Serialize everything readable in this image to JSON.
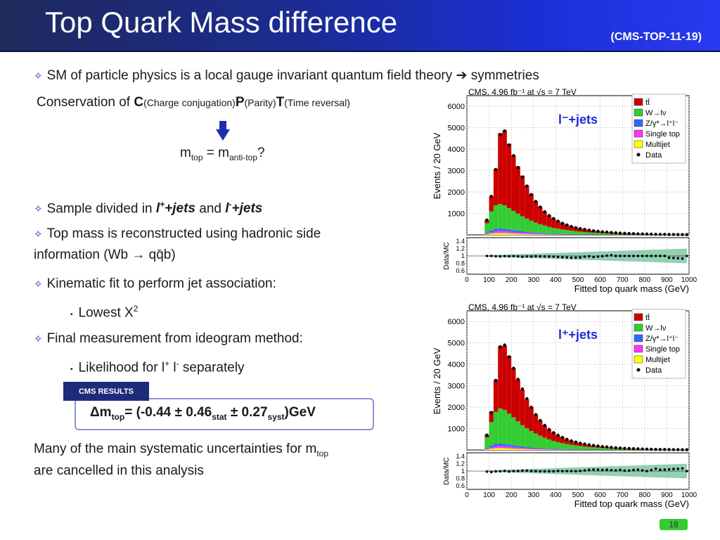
{
  "header": {
    "title": "Top Quark Mass difference",
    "ref": "(CMS-TOP-11-19)"
  },
  "body": {
    "line1": "SM of particle physics is a local gauge invariant quantum field theory",
    "line1_arrow": "➔",
    "line1_tail": "symmetries",
    "conservation_prefix": "Conservation of ",
    "c_letter": "C",
    "c_text": "(Charge conjugation)",
    "p_letter": "P",
    "p_text": "(Parity)",
    "t_letter": "T",
    "t_text": "(Time reversal)",
    "mtop_m": "m",
    "mtop_sub": "top",
    "mtop_eq": " = m",
    "mtop_sub2": "anti-top",
    "mtop_q": "?",
    "bullet_sample_a": "Sample divided in ",
    "bullet_sample_b": "l",
    "bullet_sample_bsup": "+",
    "bullet_sample_c": "+jets",
    "bullet_sample_d": " and ",
    "bullet_sample_e": "l",
    "bullet_sample_esup": "-",
    "bullet_sample_f": "+jets",
    "bullet_reco_1": "Top mass is reconstructed using hadronic side",
    "bullet_reco_2": "information (Wb → qq̄b)",
    "bullet_kin": "Kinematic fit to perform jet association:",
    "sub_lowest": "Lowest X",
    "sub_lowest_sup": "2",
    "bullet_final": "Final measurement from ideogram method:",
    "sub_like": "Likelihood for l",
    "sub_like_sup1": "+",
    "sub_like_mid": " l",
    "sub_like_sup2": "-",
    "sub_like_tail": " separately",
    "tag": "CMS RESULTS",
    "res_a": "Δm",
    "res_sub1": "top",
    "res_b": "= (-0.44 ± 0.46",
    "res_sub2": "stat",
    "res_c": " ± 0.27",
    "res_sub3": "syst",
    "res_d": ")GeV",
    "sys_1": "Many of the main systematic uncertainties  for m",
    "sys_sub": "top",
    "sys_2": "are cancelled in this analysis",
    "page_number": "18",
    "bullet_glyph": "✧",
    "square_glyph": "▪"
  },
  "chart_data": [
    {
      "type": "bar",
      "title": "CMS, 4.96 fb⁻¹ at √s = 7 TeV",
      "channel": "l⁻+jets",
      "xlabel": "Fitted top quark mass (GeV)",
      "ylabel": "Events / 20 GeV",
      "ratio_label": "Data/MC",
      "xlim": [
        0,
        1000
      ],
      "ylim": [
        0,
        6500
      ],
      "xticks": [
        0,
        100,
        200,
        300,
        400,
        500,
        600,
        700,
        800,
        900,
        1000
      ],
      "yticks": [
        1000,
        2000,
        3000,
        4000,
        5000,
        6000
      ],
      "ratio_ticks": [
        0.6,
        0.8,
        1,
        1.2,
        1.4
      ],
      "legend": [
        "tt̄",
        "W→lν",
        "Z/γ*→l⁺l⁻",
        "Single top",
        "Multijet",
        "Data"
      ],
      "colors": {
        "ttbar": "#cc0000",
        "wjets": "#33cc33",
        "zjets": "#3366ff",
        "singletop": "#ff33ff",
        "multijet": "#ffff00"
      },
      "x": [
        90,
        110,
        130,
        150,
        170,
        190,
        210,
        230,
        250,
        270,
        290,
        310,
        330,
        350,
        370,
        390,
        410,
        430,
        450,
        470,
        490,
        510,
        530,
        550,
        570,
        590,
        610,
        630,
        650,
        670,
        690,
        710,
        730,
        750,
        770,
        790,
        810,
        830,
        850,
        870,
        890,
        910,
        930,
        950,
        970,
        990
      ],
      "series": [
        {
          "name": "W→lν",
          "values": [
            450,
            900,
            1100,
            1150,
            1100,
            1000,
            900,
            800,
            700,
            620,
            540,
            470,
            410,
            360,
            310,
            270,
            240,
            210,
            185,
            160,
            140,
            125,
            110,
            95,
            85,
            75,
            66,
            58,
            50,
            44,
            39,
            34,
            30,
            27,
            24,
            21,
            18,
            16,
            14,
            12,
            11,
            10,
            9,
            8,
            7,
            6
          ]
        },
        {
          "name": "tt̄",
          "values": [
            150,
            700,
            1700,
            3300,
            3500,
            3000,
            2600,
            2200,
            1900,
            1550,
            1250,
            1000,
            820,
            660,
            540,
            450,
            370,
            310,
            260,
            220,
            185,
            155,
            130,
            110,
            95,
            80,
            68,
            58,
            49,
            42,
            36,
            31,
            27,
            23,
            20,
            17,
            15,
            13,
            11,
            9,
            8,
            7,
            6,
            5,
            4,
            3
          ]
        },
        {
          "name": "Z/γ*→l⁺l⁻",
          "values": [
            40,
            80,
            110,
            110,
            100,
            95,
            85,
            75,
            65,
            55,
            48,
            42,
            36,
            31,
            27,
            23,
            20,
            17,
            15,
            13,
            11,
            10,
            9,
            8,
            7,
            6,
            5,
            5,
            4,
            4,
            3,
            3,
            3,
            2,
            2,
            2,
            2,
            1,
            1,
            1,
            1,
            1,
            1,
            1,
            1,
            1
          ]
        },
        {
          "name": "Single top",
          "values": [
            20,
            60,
            90,
            100,
            95,
            85,
            75,
            65,
            55,
            47,
            40,
            34,
            29,
            25,
            21,
            18,
            15,
            13,
            11,
            9,
            8,
            7,
            6,
            5,
            5,
            4,
            4,
            3,
            3,
            3,
            2,
            2,
            2,
            2,
            1,
            1,
            1,
            1,
            1,
            1,
            1,
            1,
            1,
            1,
            1,
            1
          ]
        },
        {
          "name": "Multijet",
          "values": [
            30,
            60,
            80,
            85,
            80,
            70,
            60,
            52,
            45,
            38,
            32,
            27,
            23,
            20,
            17,
            14,
            12,
            10,
            9,
            8,
            7,
            6,
            5,
            4,
            4,
            3,
            3,
            3,
            2,
            2,
            2,
            2,
            1,
            1,
            1,
            1,
            1,
            1,
            1,
            1,
            1,
            1,
            1,
            1,
            1,
            1
          ]
        },
        {
          "name": "Data",
          "values": [
            690,
            1800,
            3050,
            4680,
            4850,
            4200,
            3700,
            3150,
            2700,
            2280,
            1880,
            1560,
            1300,
            1080,
            900,
            760,
            640,
            540,
            460,
            390,
            335,
            290,
            255,
            220,
            190,
            165,
            145,
            128,
            110,
            95,
            82,
            72,
            63,
            55,
            48,
            42,
            37,
            32,
            28,
            24,
            22,
            19,
            17,
            15,
            13,
            12
          ]
        }
      ]
    },
    {
      "type": "bar",
      "title": "CMS, 4.96 fb⁻¹ at √s = 7 TeV",
      "channel": "l⁺+jets",
      "xlabel": "Fitted top quark mass (GeV)",
      "ylabel": "Events / 20 GeV",
      "ratio_label": "Data/MC",
      "xlim": [
        0,
        1000
      ],
      "ylim": [
        0,
        6500
      ],
      "xticks": [
        0,
        100,
        200,
        300,
        400,
        500,
        600,
        700,
        800,
        900,
        1000
      ],
      "yticks": [
        1000,
        2000,
        3000,
        4000,
        5000,
        6000
      ],
      "ratio_ticks": [
        0.6,
        0.8,
        1,
        1.2,
        1.4
      ],
      "legend": [
        "tt̄",
        "W→lν",
        "Z/γ*→l⁺l⁻",
        "Single top",
        "Multijet",
        "Data"
      ],
      "colors": {
        "ttbar": "#cc0000",
        "wjets": "#33cc33",
        "zjets": "#3366ff",
        "singletop": "#ff33ff",
        "multijet": "#ffff00"
      },
      "x": [
        90,
        110,
        130,
        150,
        170,
        190,
        210,
        230,
        250,
        270,
        290,
        310,
        330,
        350,
        370,
        390,
        410,
        430,
        450,
        470,
        490,
        510,
        530,
        550,
        570,
        590,
        610,
        630,
        650,
        670,
        690,
        710,
        730,
        750,
        770,
        790,
        810,
        830,
        850,
        870,
        890,
        910,
        930,
        950,
        970,
        990
      ],
      "series": [
        {
          "name": "W→lν",
          "values": [
            500,
            1100,
            1500,
            1650,
            1600,
            1450,
            1300,
            1150,
            1000,
            880,
            770,
            670,
            580,
            500,
            430,
            370,
            320,
            280,
            245,
            215,
            190,
            165,
            145,
            125,
            110,
            97,
            85,
            75,
            66,
            58,
            51,
            45,
            40,
            35,
            31,
            27,
            24,
            21,
            18,
            16,
            14,
            12,
            10,
            9,
            8,
            7
          ]
        },
        {
          "name": "tt̄",
          "values": [
            120,
            500,
            1500,
            2900,
            3000,
            2700,
            2300,
            1950,
            1650,
            1350,
            1100,
            880,
            720,
            580,
            470,
            390,
            320,
            270,
            220,
            185,
            155,
            130,
            110,
            95,
            80,
            68,
            58,
            49,
            42,
            36,
            31,
            27,
            23,
            20,
            17,
            15,
            13,
            11,
            9,
            8,
            7,
            6,
            5,
            4,
            3,
            3
          ]
        },
        {
          "name": "Z/γ*→l⁺l⁻",
          "values": [
            40,
            80,
            110,
            110,
            100,
            95,
            85,
            75,
            65,
            55,
            48,
            42,
            36,
            31,
            27,
            23,
            20,
            17,
            15,
            13,
            11,
            10,
            9,
            8,
            7,
            6,
            5,
            5,
            4,
            4,
            3,
            3,
            3,
            2,
            2,
            2,
            2,
            1,
            1,
            1,
            1,
            1,
            1,
            1,
            1,
            1
          ]
        },
        {
          "name": "Single top",
          "values": [
            20,
            60,
            90,
            100,
            95,
            85,
            75,
            65,
            55,
            47,
            40,
            34,
            29,
            25,
            21,
            18,
            15,
            13,
            11,
            9,
            8,
            7,
            6,
            5,
            5,
            4,
            4,
            3,
            3,
            3,
            2,
            2,
            2,
            2,
            1,
            1,
            1,
            1,
            1,
            1,
            1,
            1,
            1,
            1,
            1,
            1
          ]
        },
        {
          "name": "Multijet",
          "values": [
            30,
            60,
            80,
            85,
            80,
            70,
            60,
            52,
            45,
            38,
            32,
            27,
            23,
            20,
            17,
            14,
            12,
            10,
            9,
            8,
            7,
            6,
            5,
            4,
            4,
            3,
            3,
            3,
            2,
            2,
            2,
            2,
            1,
            1,
            1,
            1,
            1,
            1,
            1,
            1,
            1,
            1,
            1,
            1,
            1,
            1
          ]
        },
        {
          "name": "Data",
          "values": [
            700,
            1750,
            3250,
            4820,
            4900,
            4350,
            3820,
            3300,
            2850,
            2400,
            2000,
            1650,
            1380,
            1150,
            960,
            810,
            690,
            590,
            500,
            430,
            370,
            320,
            280,
            245,
            215,
            185,
            160,
            140,
            120,
            105,
            92,
            80,
            70,
            62,
            54,
            47,
            41,
            36,
            32,
            28,
            25,
            22,
            19,
            17,
            15,
            13
          ]
        }
      ]
    }
  ]
}
